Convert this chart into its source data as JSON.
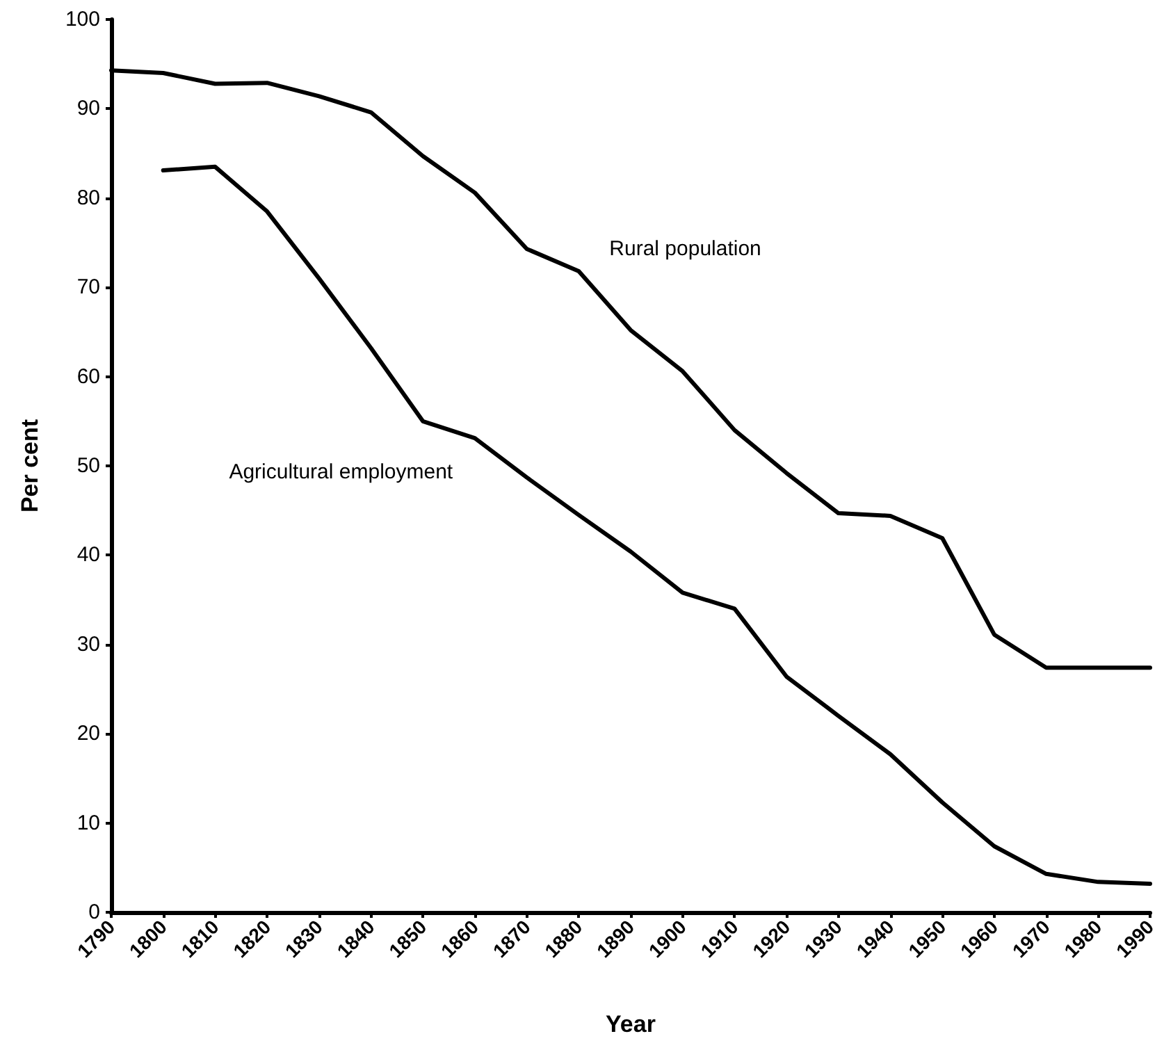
{
  "chart_data": {
    "type": "line",
    "xlabel": "Year",
    "ylabel": "Per cent",
    "categories": [
      "1790",
      "1800",
      "1810",
      "1820",
      "1830",
      "1840",
      "1850",
      "1860",
      "1870",
      "1880",
      "1890",
      "1900",
      "1910",
      "1920",
      "1930",
      "1940",
      "1950",
      "1960",
      "1970",
      "1980",
      "1990"
    ],
    "series": [
      {
        "name": "Rural population",
        "color": "#000000",
        "values": [
          94.3,
          94.0,
          92.8,
          92.9,
          91.4,
          89.6,
          84.7,
          80.6,
          74.3,
          71.8,
          65.2,
          60.6,
          54.0,
          49.2,
          44.7,
          44.4,
          41.9,
          31.1,
          27.4,
          27.4,
          27.4
        ]
      },
      {
        "name": "Agricultural employment",
        "color": "#000000",
        "values": [
          null,
          83.1,
          83.5,
          78.5,
          71.0,
          63.2,
          55.0,
          53.1,
          48.7,
          44.5,
          40.4,
          35.8,
          34.0,
          26.4,
          22.0,
          17.7,
          12.3,
          7.4,
          4.3,
          3.4,
          3.2
        ]
      }
    ],
    "ylim": [
      0,
      100
    ],
    "yticks": [
      0,
      10,
      20,
      30,
      40,
      50,
      60,
      70,
      80,
      90,
      100
    ],
    "grid": false,
    "legend": false,
    "marker": "none",
    "line_style": "solid"
  }
}
